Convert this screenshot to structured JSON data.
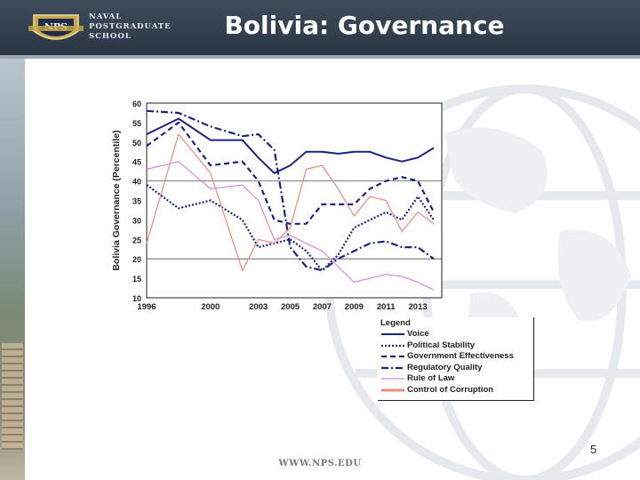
{
  "header": {
    "title": "Bolivia: Governance",
    "school_lines": [
      "NAVAL",
      "POSTGRADUATE",
      "SCHOOL"
    ],
    "logo_text": "NPS"
  },
  "footer": {
    "url": "WWW.NPS.EDU",
    "page_number": "5"
  },
  "chart_data": {
    "type": "line",
    "title": "",
    "xlabel": "",
    "ylabel": "Bolivia Governance (Percentile)",
    "x_ticks": [
      1996,
      2000,
      2003,
      2005,
      2007,
      2009,
      2011,
      2013
    ],
    "x_tick_labels": [
      "1996",
      "2000",
      "2003",
      "2005",
      "2007",
      "2009",
      "2011",
      "2013"
    ],
    "xlim": [
      1996,
      2014.5
    ],
    "ylim": [
      10,
      60
    ],
    "y_ticks": [
      10,
      15,
      20,
      25,
      30,
      35,
      40,
      45,
      50,
      55,
      60
    ],
    "grid": "horizontal lines at 20, 40",
    "legend_title": "Legend",
    "legend_position": "bottom-right",
    "series": [
      {
        "name": "Voice",
        "color": "#1a237e",
        "style": "solid",
        "x": [
          1996,
          1998,
          2000,
          2002,
          2003,
          2004,
          2005,
          2006,
          2007,
          2008,
          2009,
          2010,
          2011,
          2012,
          2013,
          2014
        ],
        "y": [
          52,
          56,
          50.5,
          50.5,
          46,
          42,
          44,
          47.5,
          47.5,
          47,
          47.5,
          47.5,
          46,
          45,
          46,
          48.5
        ]
      },
      {
        "name": "Political Stability",
        "color": "#1a237e",
        "style": "dotted",
        "x": [
          1996,
          1998,
          2000,
          2002,
          2003,
          2004,
          2005,
          2006,
          2007,
          2008,
          2009,
          2010,
          2011,
          2012,
          2013,
          2014
        ],
        "y": [
          39,
          33,
          35,
          30,
          23,
          24,
          25,
          22,
          17,
          21,
          28,
          30,
          32,
          30,
          36,
          30
        ]
      },
      {
        "name": "Government Effectiveness",
        "color": "#1a237e",
        "style": "dashed",
        "x": [
          1996,
          1998,
          2000,
          2002,
          2003,
          2004,
          2005,
          2006,
          2007,
          2008,
          2009,
          2010,
          2011,
          2012,
          2013,
          2014
        ],
        "y": [
          49,
          55,
          44,
          45,
          40,
          30,
          29,
          29,
          34,
          34,
          34,
          38,
          40,
          41,
          40,
          32
        ]
      },
      {
        "name": "Regulatory Quality",
        "color": "#1a237e",
        "style": "dashdot",
        "x": [
          1996,
          1998,
          2000,
          2002,
          2003,
          2004,
          2005,
          2006,
          2007,
          2008,
          2009,
          2010,
          2011,
          2012,
          2013,
          2014
        ],
        "y": [
          58,
          57.5,
          54,
          51.5,
          52,
          48,
          23,
          18,
          17,
          20,
          22,
          24,
          24.5,
          23,
          23,
          20
        ]
      },
      {
        "name": "Rule of Law",
        "color": "#d889d8",
        "style": "solid",
        "x": [
          1996,
          1998,
          2000,
          2002,
          2003,
          2004,
          2005,
          2006,
          2007,
          2008,
          2009,
          2010,
          2011,
          2012,
          2013,
          2014
        ],
        "y": [
          43,
          45,
          38,
          39,
          35,
          25,
          26,
          24,
          22,
          18,
          14,
          15,
          16,
          15.5,
          14,
          12
        ]
      },
      {
        "name": "Control of Corruption",
        "color": "#f08878",
        "style": "solid",
        "x": [
          1996,
          1998,
          2000,
          2002,
          2003,
          2004,
          2005,
          2006,
          2007,
          2008,
          2009,
          2010,
          2011,
          2012,
          2013,
          2014
        ],
        "y": [
          24,
          52,
          42,
          17,
          25,
          24,
          28,
          43,
          44,
          38,
          31,
          36,
          35,
          27,
          32,
          29
        ]
      }
    ]
  }
}
